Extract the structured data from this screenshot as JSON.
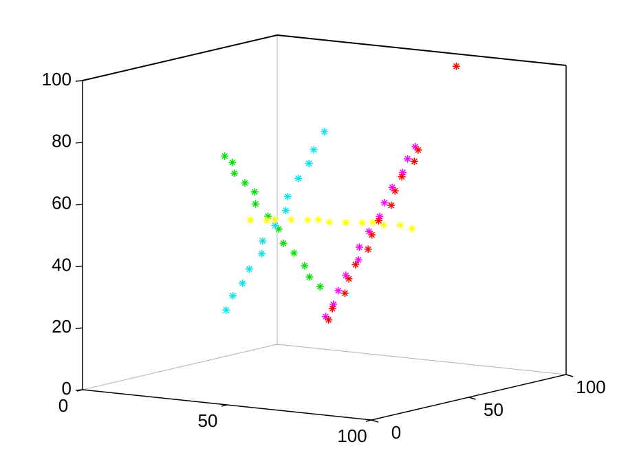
{
  "chart_data": {
    "type": "scatter3d",
    "xlim": [
      0,
      100
    ],
    "ylim": [
      0,
      100
    ],
    "zlim": [
      0,
      100
    ],
    "xticks": [
      0,
      50,
      100
    ],
    "yticks": [
      0,
      50,
      100
    ],
    "zticks": [
      0,
      20,
      40,
      60,
      80,
      100
    ],
    "series": [
      {
        "color": "#00e000",
        "x": [
          29,
          31,
          33,
          36,
          38,
          41,
          44,
          47,
          50,
          53,
          56,
          59,
          62
        ],
        "y": [
          30,
          31,
          29,
          30,
          32,
          28,
          30,
          31,
          29,
          30,
          31,
          29,
          30
        ],
        "z": [
          74,
          72,
          69,
          66,
          63,
          60,
          56,
          52,
          48,
          45,
          41,
          38,
          35
        ]
      },
      {
        "color": "#00e5ee",
        "x": [
          16,
          19,
          21,
          24,
          27,
          30,
          33,
          36,
          38,
          41,
          44,
          47,
          50
        ],
        "y": [
          50,
          49,
          51,
          50,
          52,
          48,
          50,
          51,
          49,
          50,
          51,
          49,
          50
        ],
        "z": [
          20,
          25,
          29,
          34,
          39,
          44,
          49,
          54,
          59,
          65,
          70,
          75,
          81
        ]
      },
      {
        "color": "#ffff00",
        "x": [
          50,
          51,
          49,
          50,
          51,
          50,
          49,
          50,
          51,
          50,
          49,
          50,
          50
        ],
        "y": [
          12,
          19,
          26,
          33,
          40,
          47,
          54,
          61,
          68,
          75,
          82,
          89,
          95
        ],
        "z": [
          58,
          57,
          56,
          55,
          54,
          53,
          51,
          50,
          49,
          48,
          46,
          45,
          43
        ]
      },
      {
        "color": "#ff00ff",
        "x": [
          37,
          39,
          42,
          44,
          47,
          50,
          52,
          55,
          58,
          60,
          63,
          66,
          68
        ],
        "y": [
          70,
          71,
          69,
          70,
          72,
          68,
          70,
          71,
          69,
          70,
          71,
          69,
          70
        ],
        "z": [
          17,
          21,
          26,
          31,
          36,
          41,
          46,
          51,
          56,
          61,
          66,
          71,
          75
        ]
      },
      {
        "color": "#ff0000",
        "x": [
          38,
          40,
          43,
          45,
          48,
          51,
          53,
          56,
          59,
          61,
          64,
          67,
          69,
          62
        ],
        "y": [
          70,
          69,
          71,
          70,
          69,
          71,
          70,
          69,
          71,
          70,
          69,
          71,
          70,
          100
        ],
        "z": [
          16,
          20,
          25,
          30,
          35,
          40,
          45,
          50,
          55,
          60,
          65,
          70,
          74,
          96
        ]
      }
    ]
  }
}
